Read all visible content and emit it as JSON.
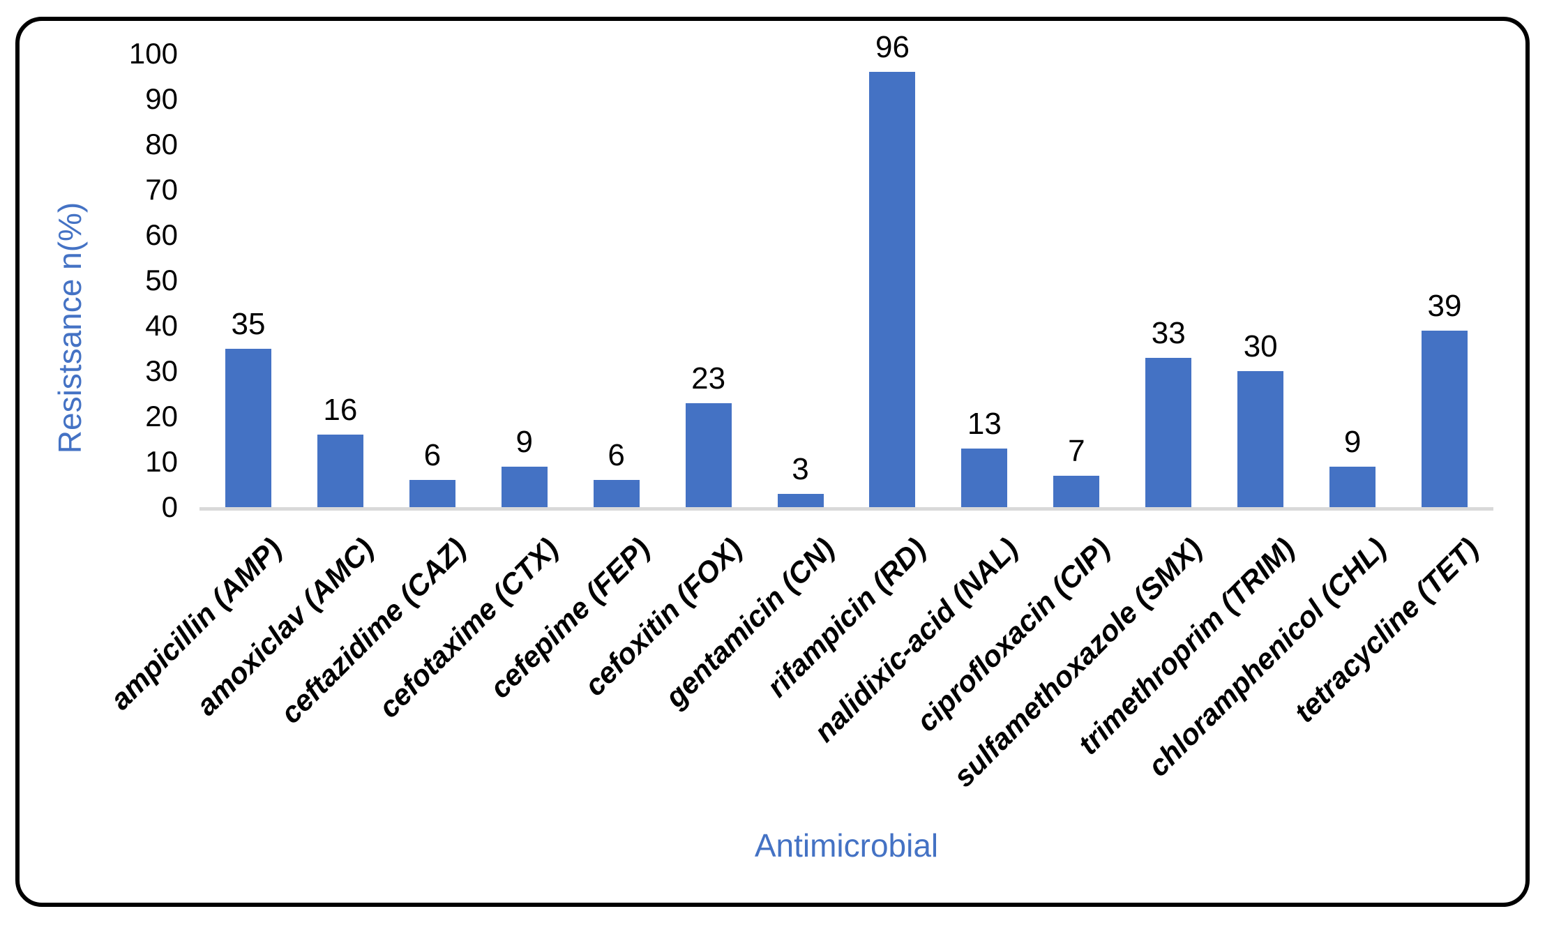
{
  "chart_data": {
    "type": "bar",
    "title": "",
    "categories": [
      "ampicillin (AMP)",
      "amoxiclav (AMC)",
      "ceftazidime (CAZ)",
      "cefotaxime (CTX)",
      "cefepime (FEP)",
      "cefoxitin (FOX)",
      "gentamicin (CN)",
      "rifampicin (RD)",
      "nalidixic-acid (NAL)",
      "ciprofloxacin (CIP)",
      "sulfamethoxazole (SMX)",
      "trimethroprim (TRIM)",
      "chloramphenicol (CHL)",
      "tetracycline (TET)"
    ],
    "values": [
      35,
      16,
      6,
      9,
      6,
      23,
      3,
      96,
      13,
      7,
      33,
      30,
      9,
      39
    ],
    "xlabel": "Antimicrobial",
    "ylabel": "Resistsance n(%)",
    "ylim": [
      0,
      100
    ],
    "yticks": [
      0,
      10,
      20,
      30,
      40,
      50,
      60,
      70,
      80,
      90,
      100
    ],
    "grid": false,
    "legend": "none",
    "data_labels": true,
    "colors": {
      "bar": "#4472C4",
      "axis_title": "#4472C4",
      "tick_label": "#000000",
      "data_label": "#000000",
      "category_label": "#000000",
      "baseline": "#D9D9D9",
      "frame_border": "#000000",
      "background": "#FFFFFF"
    }
  }
}
